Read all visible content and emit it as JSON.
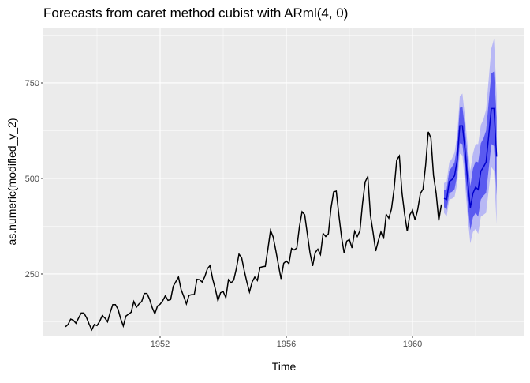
{
  "chart_data": {
    "type": "line",
    "title": "Forecasts from caret method cubist with ARml(4,  0)",
    "xlabel": "Time",
    "ylabel": "as.numeric(modified_y_2)",
    "xlim": [
      1948.3,
      1963.55
    ],
    "ylim": [
      88.8,
      894.6
    ],
    "x_ticks": [
      1952,
      1956,
      1960
    ],
    "x_tick_labels": [
      "1952",
      "1956",
      "1960"
    ],
    "x_minor": [
      1950,
      1954,
      1958,
      1962
    ],
    "y_ticks": [
      250,
      500,
      750
    ],
    "y_tick_labels": [
      "250",
      "500",
      "750"
    ],
    "y_minor": [
      125,
      375,
      625,
      875
    ],
    "grid": true,
    "colors": {
      "panel": "#ebebeb",
      "grid": "#ffffff",
      "history": "#000000",
      "mean": "#0000cc",
      "band80": "#5a5af0",
      "band95": "#b8b8f5"
    },
    "history": {
      "start": 1949,
      "frequency": 12,
      "values": [
        112,
        118,
        132,
        129,
        121,
        135,
        148,
        148,
        136,
        119,
        104,
        118,
        115,
        126,
        141,
        135,
        125,
        149,
        170,
        170,
        158,
        133,
        114,
        140,
        145,
        150,
        178,
        163,
        172,
        178,
        199,
        199,
        184,
        162,
        146,
        166,
        171,
        180,
        193,
        181,
        183,
        218,
        230,
        242,
        209,
        191,
        172,
        194,
        196,
        196,
        236,
        235,
        229,
        243,
        264,
        272,
        237,
        211,
        180,
        201,
        204,
        188,
        235,
        227,
        234,
        264,
        302,
        293,
        259,
        229,
        203,
        229,
        242,
        233,
        267,
        269,
        270,
        315,
        364,
        347,
        312,
        274,
        237,
        278,
        284,
        277,
        317,
        313,
        318,
        374,
        413,
        405,
        355,
        306,
        271,
        306,
        315,
        301,
        356,
        348,
        355,
        422,
        465,
        467,
        404,
        347,
        305,
        336,
        340,
        318,
        362,
        348,
        363,
        435,
        491,
        505,
        404,
        359,
        310,
        337,
        360,
        342,
        406,
        396,
        420,
        472,
        548,
        559,
        463,
        407,
        362,
        405,
        417,
        391,
        419,
        461,
        472,
        535,
        622,
        606,
        508,
        461,
        390,
        432
      ]
    },
    "forecast": {
      "start": 1961,
      "frequency": 12,
      "mean": [
        448,
        445,
        492,
        497,
        507,
        547,
        638,
        638,
        574,
        492,
        423,
        461,
        477,
        471,
        519,
        530,
        543,
        612,
        683,
        683,
        557
      ],
      "lo80": [
        425,
        418,
        462,
        465,
        472,
        508,
        592,
        590,
        520,
        435,
        365,
        398,
        410,
        400,
        445,
        455,
        462,
        525,
        590,
        585,
        455
      ],
      "hi80": [
        470,
        472,
        520,
        530,
        542,
        585,
        685,
        688,
        628,
        548,
        480,
        525,
        545,
        542,
        592,
        605,
        625,
        700,
        775,
        780,
        660
      ],
      "lo95": [
        410,
        400,
        445,
        447,
        452,
        485,
        565,
        560,
        485,
        400,
        330,
        360,
        368,
        355,
        400,
        405,
        410,
        470,
        530,
        520,
        380
      ],
      "hi95": [
        488,
        492,
        542,
        552,
        568,
        612,
        715,
        722,
        660,
        585,
        520,
        565,
        590,
        590,
        640,
        655,
        680,
        760,
        840,
        865,
        720
      ]
    }
  }
}
